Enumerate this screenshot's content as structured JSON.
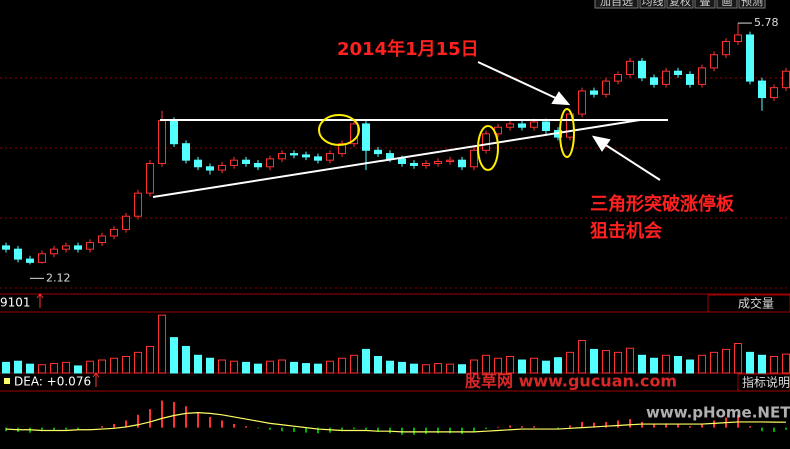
{
  "toolbar": [
    "加自选",
    "均线",
    "复权",
    "叠",
    "画",
    "预测"
  ],
  "watermarks": [
    "股草网 www.gucuan.com",
    "www.pHome.NET"
  ],
  "chart_data": [
    {
      "type": "candlestick",
      "annotations": [
        "2014年1月15日",
        "三角形突破涨停板",
        "狙击机会"
      ],
      "up_color": "#ff3232",
      "down_color": "#54ffff",
      "ylim": [
        1.67,
        6.13
      ],
      "open": [
        2.4,
        2.35,
        2.2,
        2.15,
        2.28,
        2.35,
        2.4,
        2.35,
        2.45,
        2.55,
        2.65,
        2.85,
        3.2,
        3.65,
        4.3,
        3.95,
        3.7,
        3.6,
        3.55,
        3.62,
        3.7,
        3.65,
        3.6,
        3.72,
        3.8,
        3.78,
        3.75,
        3.7,
        3.8,
        3.95,
        4.25,
        3.85,
        3.8,
        3.72,
        3.65,
        3.62,
        3.65,
        3.68,
        3.7,
        3.6,
        3.85,
        4.1,
        4.2,
        4.25,
        4.2,
        4.28,
        4.15,
        4.05,
        4.4,
        4.75,
        4.7,
        4.9,
        5.0,
        5.2,
        4.95,
        4.85,
        5.05,
        5.0,
        4.85,
        5.1,
        5.3,
        5.5,
        5.6,
        4.9,
        4.65,
        4.8
      ],
      "close": [
        2.35,
        2.2,
        2.15,
        2.28,
        2.35,
        2.4,
        2.35,
        2.45,
        2.55,
        2.65,
        2.85,
        3.2,
        3.65,
        4.3,
        3.95,
        3.7,
        3.6,
        3.55,
        3.62,
        3.7,
        3.65,
        3.6,
        3.72,
        3.8,
        3.78,
        3.75,
        3.7,
        3.8,
        3.95,
        4.25,
        3.85,
        3.8,
        3.72,
        3.65,
        3.62,
        3.65,
        3.68,
        3.7,
        3.6,
        3.85,
        4.1,
        4.2,
        4.25,
        4.2,
        4.28,
        4.15,
        4.05,
        4.4,
        4.75,
        4.7,
        4.9,
        5.0,
        5.2,
        4.95,
        4.85,
        5.05,
        5.0,
        4.85,
        5.1,
        5.3,
        5.5,
        5.6,
        4.9,
        4.65,
        4.8,
        5.05
      ],
      "high": [
        2.45,
        2.4,
        2.25,
        2.33,
        2.4,
        2.45,
        2.45,
        2.5,
        2.6,
        2.7,
        2.9,
        3.25,
        3.7,
        4.45,
        4.35,
        4.0,
        3.75,
        3.65,
        3.67,
        3.75,
        3.75,
        3.7,
        3.77,
        3.85,
        3.85,
        3.83,
        3.8,
        3.85,
        4.0,
        4.3,
        4.3,
        3.9,
        3.85,
        3.77,
        3.7,
        3.7,
        3.73,
        3.75,
        3.75,
        3.9,
        4.15,
        4.25,
        4.3,
        4.3,
        4.33,
        4.33,
        4.2,
        4.45,
        4.8,
        4.8,
        4.95,
        5.05,
        5.25,
        5.25,
        5.0,
        5.1,
        5.1,
        5.05,
        5.15,
        5.35,
        5.55,
        5.78,
        5.65,
        4.95,
        4.85,
        5.1
      ],
      "low": [
        2.3,
        2.15,
        2.12,
        2.13,
        2.23,
        2.3,
        2.3,
        2.3,
        2.4,
        2.5,
        2.6,
        2.8,
        3.15,
        3.6,
        3.9,
        3.65,
        3.55,
        3.48,
        3.5,
        3.57,
        3.6,
        3.55,
        3.55,
        3.67,
        3.73,
        3.7,
        3.65,
        3.65,
        3.75,
        3.9,
        3.55,
        3.75,
        3.67,
        3.6,
        3.57,
        3.57,
        3.6,
        3.63,
        3.55,
        3.55,
        3.8,
        4.05,
        4.15,
        4.15,
        4.15,
        4.1,
        4.0,
        4.0,
        4.35,
        4.65,
        4.65,
        4.85,
        4.95,
        4.9,
        4.8,
        4.8,
        4.95,
        4.8,
        4.8,
        5.05,
        5.25,
        5.45,
        4.85,
        4.45,
        4.6,
        4.75
      ]
    },
    {
      "type": "bar",
      "title": "成交量",
      "legend_value": 9101,
      "ylim": [
        0,
        100
      ],
      "values": [
        18,
        20,
        15,
        14,
        16,
        18,
        12,
        20,
        22,
        25,
        28,
        35,
        45,
        98,
        60,
        45,
        30,
        25,
        22,
        20,
        18,
        15,
        20,
        22,
        18,
        16,
        15,
        20,
        25,
        30,
        40,
        28,
        20,
        18,
        15,
        14,
        16,
        15,
        14,
        22,
        30,
        25,
        28,
        22,
        25,
        20,
        26,
        35,
        55,
        40,
        38,
        35,
        42,
        30,
        25,
        30,
        28,
        22,
        30,
        35,
        40,
        50,
        35,
        30,
        28,
        32
      ]
    },
    {
      "type": "macd",
      "label": "DEA: +0.076",
      "button": "指标说明",
      "ylim": [
        -0.3,
        0.5
      ],
      "pos_color": "#ff3232",
      "neg_color": "#00b000",
      "dea_color": "#ffff66",
      "macd": [
        -0.05,
        -0.06,
        -0.07,
        -0.05,
        -0.04,
        -0.03,
        -0.02,
        0.0,
        0.02,
        0.05,
        0.1,
        0.18,
        0.26,
        0.38,
        0.36,
        0.3,
        0.22,
        0.15,
        0.1,
        0.05,
        0.02,
        -0.01,
        -0.03,
        -0.05,
        -0.06,
        -0.07,
        -0.08,
        -0.07,
        -0.05,
        -0.02,
        -0.03,
        -0.06,
        -0.08,
        -0.1,
        -0.1,
        -0.09,
        -0.08,
        -0.08,
        -0.09,
        -0.06,
        -0.02,
        0.01,
        0.03,
        0.02,
        0.02,
        0.0,
        -0.02,
        0.03,
        0.08,
        0.07,
        0.08,
        0.1,
        0.12,
        0.08,
        0.05,
        0.06,
        0.05,
        0.02,
        0.05,
        0.1,
        0.14,
        0.18,
        0.02,
        -0.05,
        -0.06,
        -0.03
      ],
      "dea": [
        -0.02,
        -0.03,
        -0.03,
        -0.04,
        -0.04,
        -0.04,
        -0.03,
        -0.03,
        -0.02,
        -0.01,
        0.01,
        0.04,
        0.08,
        0.13,
        0.17,
        0.2,
        0.21,
        0.2,
        0.18,
        0.15,
        0.12,
        0.09,
        0.06,
        0.04,
        0.02,
        0.0,
        -0.02,
        -0.03,
        -0.04,
        -0.04,
        -0.04,
        -0.05,
        -0.05,
        -0.06,
        -0.06,
        -0.06,
        -0.06,
        -0.06,
        -0.06,
        -0.06,
        -0.05,
        -0.04,
        -0.03,
        -0.02,
        -0.02,
        -0.02,
        -0.02,
        -0.01,
        0.0,
        0.01,
        0.02,
        0.03,
        0.04,
        0.05,
        0.05,
        0.05,
        0.05,
        0.05,
        0.05,
        0.06,
        0.07,
        0.08,
        0.08,
        0.08,
        0.077,
        0.076
      ]
    }
  ]
}
